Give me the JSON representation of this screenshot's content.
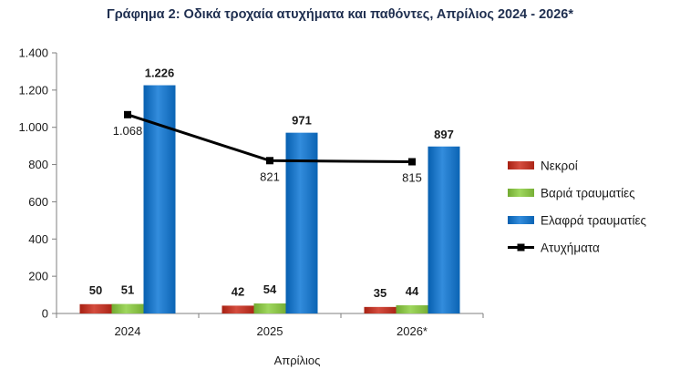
{
  "chart_data": {
    "type": "bar",
    "title": "Γράφημα 2: Οδικά τροχαία ατυχήματα και παθόντες, Απρίλιος 2024 - 2026*",
    "xlabel": "Απρίλιος",
    "ylabel": "",
    "categories": [
      "2024",
      "2025",
      "2026*"
    ],
    "ylim": [
      0,
      1400
    ],
    "yticks": [
      0,
      200,
      400,
      600,
      800,
      1000,
      1200,
      1400
    ],
    "ytick_labels": [
      "0",
      "200",
      "400",
      "600",
      "800",
      "1.000",
      "1.200",
      "1.400"
    ],
    "series": [
      {
        "name": "Νεκροί",
        "type": "bar",
        "color": "#c0392b",
        "values": [
          50,
          42,
          35
        ],
        "labels": [
          "50",
          "42",
          "35"
        ]
      },
      {
        "name": "Βαριά τραυματίες",
        "type": "bar",
        "color": "#8bc34a",
        "values": [
          51,
          54,
          44
        ],
        "labels": [
          "51",
          "54",
          "44"
        ]
      },
      {
        "name": "Ελαφρά τραυματίες",
        "type": "bar",
        "color": "#1f78c8",
        "values": [
          1226,
          971,
          897
        ],
        "labels": [
          "1.226",
          "971",
          "897"
        ]
      },
      {
        "name": "Ατυχήματα",
        "type": "line",
        "color": "#000000",
        "values": [
          1068,
          821,
          815
        ],
        "labels": [
          "1.068",
          "821",
          "815"
        ]
      }
    ],
    "grid": false,
    "legend_position": "right"
  }
}
